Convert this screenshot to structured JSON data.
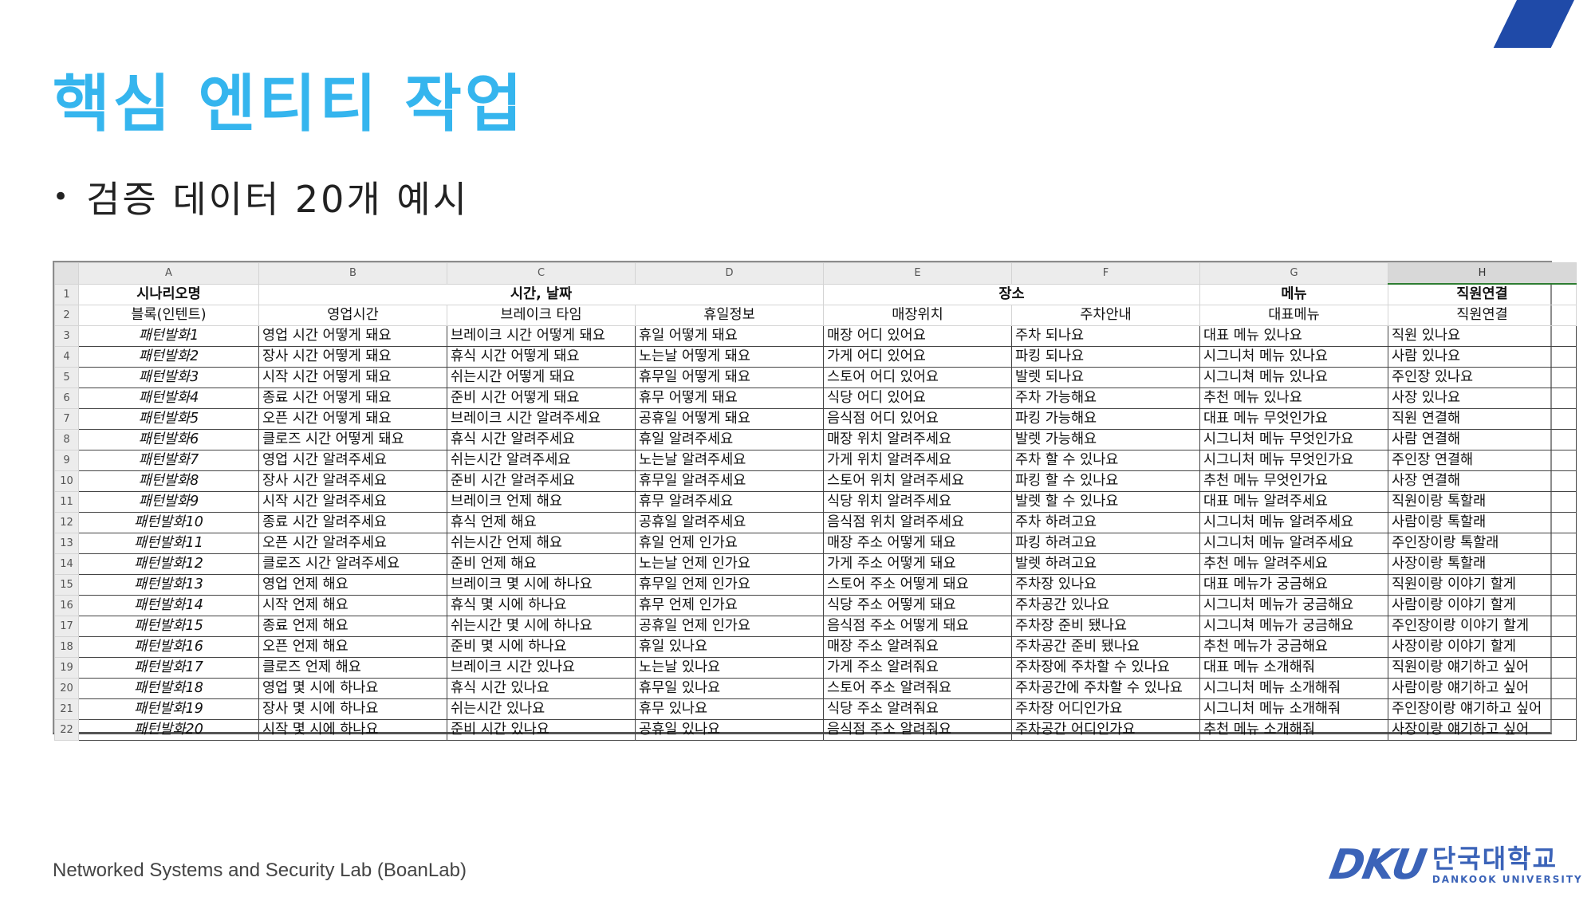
{
  "slide": {
    "title": "핵심 엔티티 작업",
    "bullet_text": "검증 데이터 20개 예시",
    "footer_lab": "Networked Systems and Security Lab (BoanLab)",
    "logo_text_kr": "단국대학교",
    "logo_text_en": "DANKOOK UNIVERSITY",
    "logo_mark": "DKU",
    "accent_color": "#35b5ee",
    "stripe_color": "#1f4aa8"
  },
  "spreadsheet": {
    "column_letters": [
      "A",
      "B",
      "C",
      "D",
      "E",
      "F",
      "G",
      "H"
    ],
    "selected_column": "H",
    "header_row1": {
      "a": "시나리오명",
      "time_date": "시간, 날짜",
      "place": "장소",
      "menu": "메뉴",
      "staff": "직원연결"
    },
    "header_row2": [
      "블록(인텐트)",
      "영업시간",
      "브레이크 타임",
      "휴일정보",
      "매장위치",
      "주차안내",
      "대표메뉴",
      "직원연결"
    ],
    "rows": [
      [
        "패턴발화1",
        "영업 시간 어떻게 돼요",
        "브레이크 시간 어떻게 돼요",
        "휴일 어떻게 돼요",
        "매장 어디 있어요",
        "주차 되나요",
        "대표 메뉴 있나요",
        "직원 있나요"
      ],
      [
        "패턴발화2",
        "장사 시간 어떻게 돼요",
        "휴식 시간 어떻게 돼요",
        "노는날 어떻게 돼요",
        "가게 어디 있어요",
        "파킹 되나요",
        "시그니처 메뉴 있나요",
        "사람 있나요"
      ],
      [
        "패턴발화3",
        "시작 시간 어떻게 돼요",
        "쉬는시간 어떻게 돼요",
        "휴무일 어떻게 돼요",
        "스토어 어디 있어요",
        "발렛 되나요",
        "시그니쳐 메뉴 있나요",
        "주인장 있나요"
      ],
      [
        "패턴발화4",
        "종료 시간 어떻게 돼요",
        "준비 시간 어떻게 돼요",
        "휴무 어떻게 돼요",
        "식당 어디 있어요",
        "주차 가능해요",
        "추천 메뉴 있나요",
        "사장 있나요"
      ],
      [
        "패턴발화5",
        "오픈 시간 어떻게 돼요",
        "브레이크 시간 알려주세요",
        "공휴일 어떻게 돼요",
        "음식점 어디 있어요",
        "파킹 가능해요",
        "대표 메뉴 무엇인가요",
        "직원 연결해"
      ],
      [
        "패턴발화6",
        "클로즈 시간 어떻게 돼요",
        "휴식 시간 알려주세요",
        "휴일 알려주세요",
        "매장 위치 알려주세요",
        "발렛 가능해요",
        "시그니처 메뉴 무엇인가요",
        "사람 연결해"
      ],
      [
        "패턴발화7",
        "영업 시간 알려주세요",
        "쉬는시간 알려주세요",
        "노는날 알려주세요",
        "가게 위치 알려주세요",
        "주차 할 수 있나요",
        "시그니처 메뉴 무엇인가요",
        "주인장 연결해"
      ],
      [
        "패턴발화8",
        "장사 시간 알려주세요",
        "준비 시간 알려주세요",
        "휴무일 알려주세요",
        "스토어 위치 알려주세요",
        "파킹 할 수 있나요",
        "추천 메뉴 무엇인가요",
        "사장 연결해"
      ],
      [
        "패턴발화9",
        "시작 시간 알려주세요",
        "브레이크 언제 해요",
        "휴무 알려주세요",
        "식당 위치 알려주세요",
        "발렛 할 수 있나요",
        "대표 메뉴 알려주세요",
        "직원이랑 톡할래"
      ],
      [
        "패턴발화10",
        "종료 시간 알려주세요",
        "휴식 언제 해요",
        "공휴일 알려주세요",
        "음식점 위치 알려주세요",
        "주차 하려고요",
        "시그니처 메뉴 알려주세요",
        "사람이랑 톡할래"
      ],
      [
        "패턴발화11",
        "오픈 시간 알려주세요",
        "쉬는시간 언제 해요",
        "휴일 언제 인가요",
        "매장 주소 어떻게 돼요",
        "파킹 하려고요",
        "시그니처 메뉴 알려주세요",
        "주인장이랑 톡할래"
      ],
      [
        "패턴발화12",
        "클로즈 시간 알려주세요",
        "준비 언제 해요",
        "노는날 언제 인가요",
        "가게 주소 어떻게 돼요",
        "발렛 하려고요",
        "추천 메뉴 알려주세요",
        "사장이랑 톡할래"
      ],
      [
        "패턴발화13",
        "영업 언제 해요",
        "브레이크 몇 시에 하나요",
        "휴무일 언제 인가요",
        "스토어 주소 어떻게 돼요",
        "주차장 있나요",
        "대표 메뉴가 궁금해요",
        "직원이랑 이야기 할게"
      ],
      [
        "패턴발화14",
        "시작 언제 해요",
        "휴식 몇 시에 하나요",
        "휴무 언제 인가요",
        "식당 주소 어떻게 돼요",
        "주차공간 있나요",
        "시그니처 메뉴가 궁금해요",
        "사람이랑 이야기 할게"
      ],
      [
        "패턴발화15",
        "종료 언제 해요",
        "쉬는시간 몇 시에 하나요",
        "공휴일 언제 인가요",
        "음식점 주소 어떻게 돼요",
        "주차장 준비 됐나요",
        "시그니쳐 메뉴가 궁금해요",
        "주인장이랑 이야기 할게"
      ],
      [
        "패턴발화16",
        "오픈 언제 해요",
        "준비 몇 시에 하나요",
        "휴일 있나요",
        "매장 주소 알려줘요",
        "주차공간 준비 됐나요",
        "추천 메뉴가 궁금해요",
        "사장이랑 이야기 할게"
      ],
      [
        "패턴발화17",
        "클로즈 언제 해요",
        "브레이크 시간 있나요",
        "노는날 있나요",
        "가게 주소 알려줘요",
        "주차장에 주차할 수 있나요",
        "대표 메뉴 소개해줘",
        "직원이랑 얘기하고 싶어"
      ],
      [
        "패턴발화18",
        "영업 몇 시에 하나요",
        "휴식 시간 있나요",
        "휴무일 있나요",
        "스토어 주소 알려줘요",
        "주차공간에 주차할 수 있나요",
        "시그니처 메뉴 소개해줘",
        "사람이랑 얘기하고 싶어"
      ],
      [
        "패턴발화19",
        "장사 몇 시에 하나요",
        "쉬는시간 있나요",
        "휴무 있나요",
        "식당 주소 알려줘요",
        "주차장 어디인가요",
        "시그니처 메뉴 소개해줘",
        "주인장이랑 얘기하고 싶어"
      ],
      [
        "패턴발화20",
        "시작 몇 시에 하나요",
        "준비 시간 있나요",
        "공휴일 있나요",
        "음식점 주소 알려줘요",
        "주차공간 어디인가요",
        "추천 메뉴 소개해줘",
        "사장이랑 얘기하고 싶어"
      ]
    ]
  }
}
